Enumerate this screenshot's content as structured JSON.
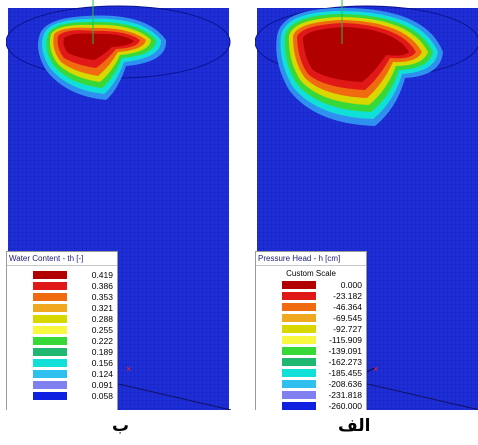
{
  "panels": {
    "left": {
      "caption": "ب",
      "legend_title": "Water Content - th [-]",
      "legend_subtitle": "",
      "values": [
        "0.419",
        "0.386",
        "0.353",
        "0.321",
        "0.288",
        "0.255",
        "0.222",
        "0.189",
        "0.156",
        "0.124",
        "0.091",
        "0.058"
      ]
    },
    "right": {
      "caption": "الف",
      "legend_title": "Pressure Head - h [cm]",
      "legend_subtitle": "Custom Scale",
      "values": [
        "0.000",
        "-23.182",
        "-46.364",
        "-69.545",
        "-92.727",
        "-115.909",
        "-139.091",
        "-162.273",
        "-185.455",
        "-208.636",
        "-231.818",
        "-260.000"
      ]
    }
  },
  "palette": [
    "#b00000",
    "#e01818",
    "#f06a10",
    "#f0a820",
    "#d8d800",
    "#f8f840",
    "#38d838",
    "#20b870",
    "#10e0d8",
    "#30c0f0",
    "#8080f0",
    "#1020e0"
  ],
  "mesh_color": "#1f2fd8",
  "marker_color": "#ff2020"
}
